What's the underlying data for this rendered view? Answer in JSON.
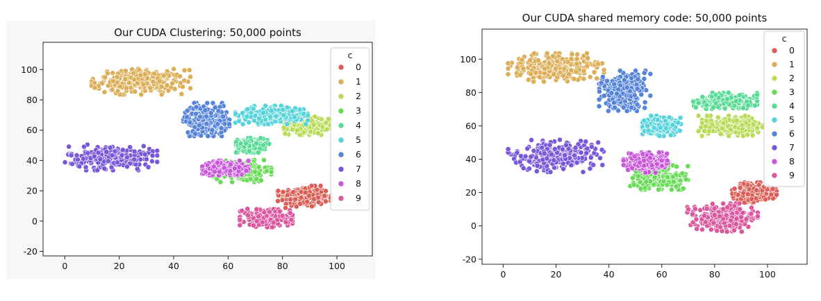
{
  "chart_data": [
    {
      "type": "scatter",
      "title": "Our CUDA Clustering: 50,000 points",
      "xlabel": "",
      "ylabel": "",
      "xlim": [
        -8,
        113
      ],
      "ylim": [
        -23,
        118
      ],
      "xticks": [
        0,
        20,
        40,
        60,
        80,
        100
      ],
      "yticks": [
        -20,
        0,
        20,
        40,
        60,
        80,
        100
      ],
      "legend_title": "c",
      "legend_position": "upper right",
      "point_count": 50000,
      "series": [
        {
          "name": "0",
          "color": "#db5f57",
          "center": [
            88,
            16
          ],
          "spread": [
            8,
            6
          ]
        },
        {
          "name": "1",
          "color": "#dbae57",
          "center": [
            28,
            92
          ],
          "spread": [
            15,
            7
          ]
        },
        {
          "name": "2",
          "color": "#b9db57",
          "center": [
            89,
            63
          ],
          "spread": [
            7,
            5
          ]
        },
        {
          "name": "3",
          "color": "#69db57",
          "center": [
            65,
            33
          ],
          "spread": [
            9,
            6
          ]
        },
        {
          "name": "4",
          "color": "#57db94",
          "center": [
            69,
            50
          ],
          "spread": [
            5,
            4
          ]
        },
        {
          "name": "5",
          "color": "#57d3db",
          "center": [
            76,
            70
          ],
          "spread": [
            11,
            5
          ]
        },
        {
          "name": "6",
          "color": "#5784db",
          "center": [
            52,
            67
          ],
          "spread": [
            7,
            9
          ]
        },
        {
          "name": "7",
          "color": "#7957db",
          "center": [
            17,
            42
          ],
          "spread": [
            14,
            7
          ]
        },
        {
          "name": "8",
          "color": "#c957db",
          "center": [
            59,
            35
          ],
          "spread": [
            7,
            4
          ]
        },
        {
          "name": "9",
          "color": "#db579e",
          "center": [
            74,
            2
          ],
          "spread": [
            8,
            5
          ]
        }
      ]
    },
    {
      "type": "scatter",
      "title": "Our CUDA shared memory code: 50,000 points",
      "xlabel": "",
      "ylabel": "",
      "xlim": [
        -8,
        115
      ],
      "ylim": [
        -23,
        118
      ],
      "xticks": [
        0,
        20,
        40,
        60,
        80,
        100
      ],
      "yticks": [
        -20,
        0,
        20,
        40,
        60,
        80,
        100
      ],
      "legend_title": "c",
      "legend_position": "upper right",
      "point_count": 50000,
      "series": [
        {
          "name": "0",
          "color": "#db5f57",
          "center": [
            95,
            20
          ],
          "spread": [
            7,
            5
          ]
        },
        {
          "name": "1",
          "color": "#dbae57",
          "center": [
            20,
            95
          ],
          "spread": [
            15,
            7
          ]
        },
        {
          "name": "2",
          "color": "#b9db57",
          "center": [
            86,
            60
          ],
          "spread": [
            10,
            5
          ]
        },
        {
          "name": "3",
          "color": "#69db57",
          "center": [
            59,
            29
          ],
          "spread": [
            9,
            6
          ]
        },
        {
          "name": "4",
          "color": "#57db94",
          "center": [
            84,
            75
          ],
          "spread": [
            10,
            4
          ]
        },
        {
          "name": "5",
          "color": "#57d3db",
          "center": [
            60,
            60
          ],
          "spread": [
            6,
            5
          ]
        },
        {
          "name": "6",
          "color": "#5784db",
          "center": [
            46,
            81
          ],
          "spread": [
            8,
            10
          ]
        },
        {
          "name": "7",
          "color": "#7957db",
          "center": [
            20,
            42
          ],
          "spread": [
            15,
            8
          ]
        },
        {
          "name": "8",
          "color": "#c957db",
          "center": [
            54,
            38
          ],
          "spread": [
            7,
            5
          ]
        },
        {
          "name": "9",
          "color": "#db579e",
          "center": [
            83,
            5
          ],
          "spread": [
            11,
            7
          ]
        }
      ]
    }
  ]
}
